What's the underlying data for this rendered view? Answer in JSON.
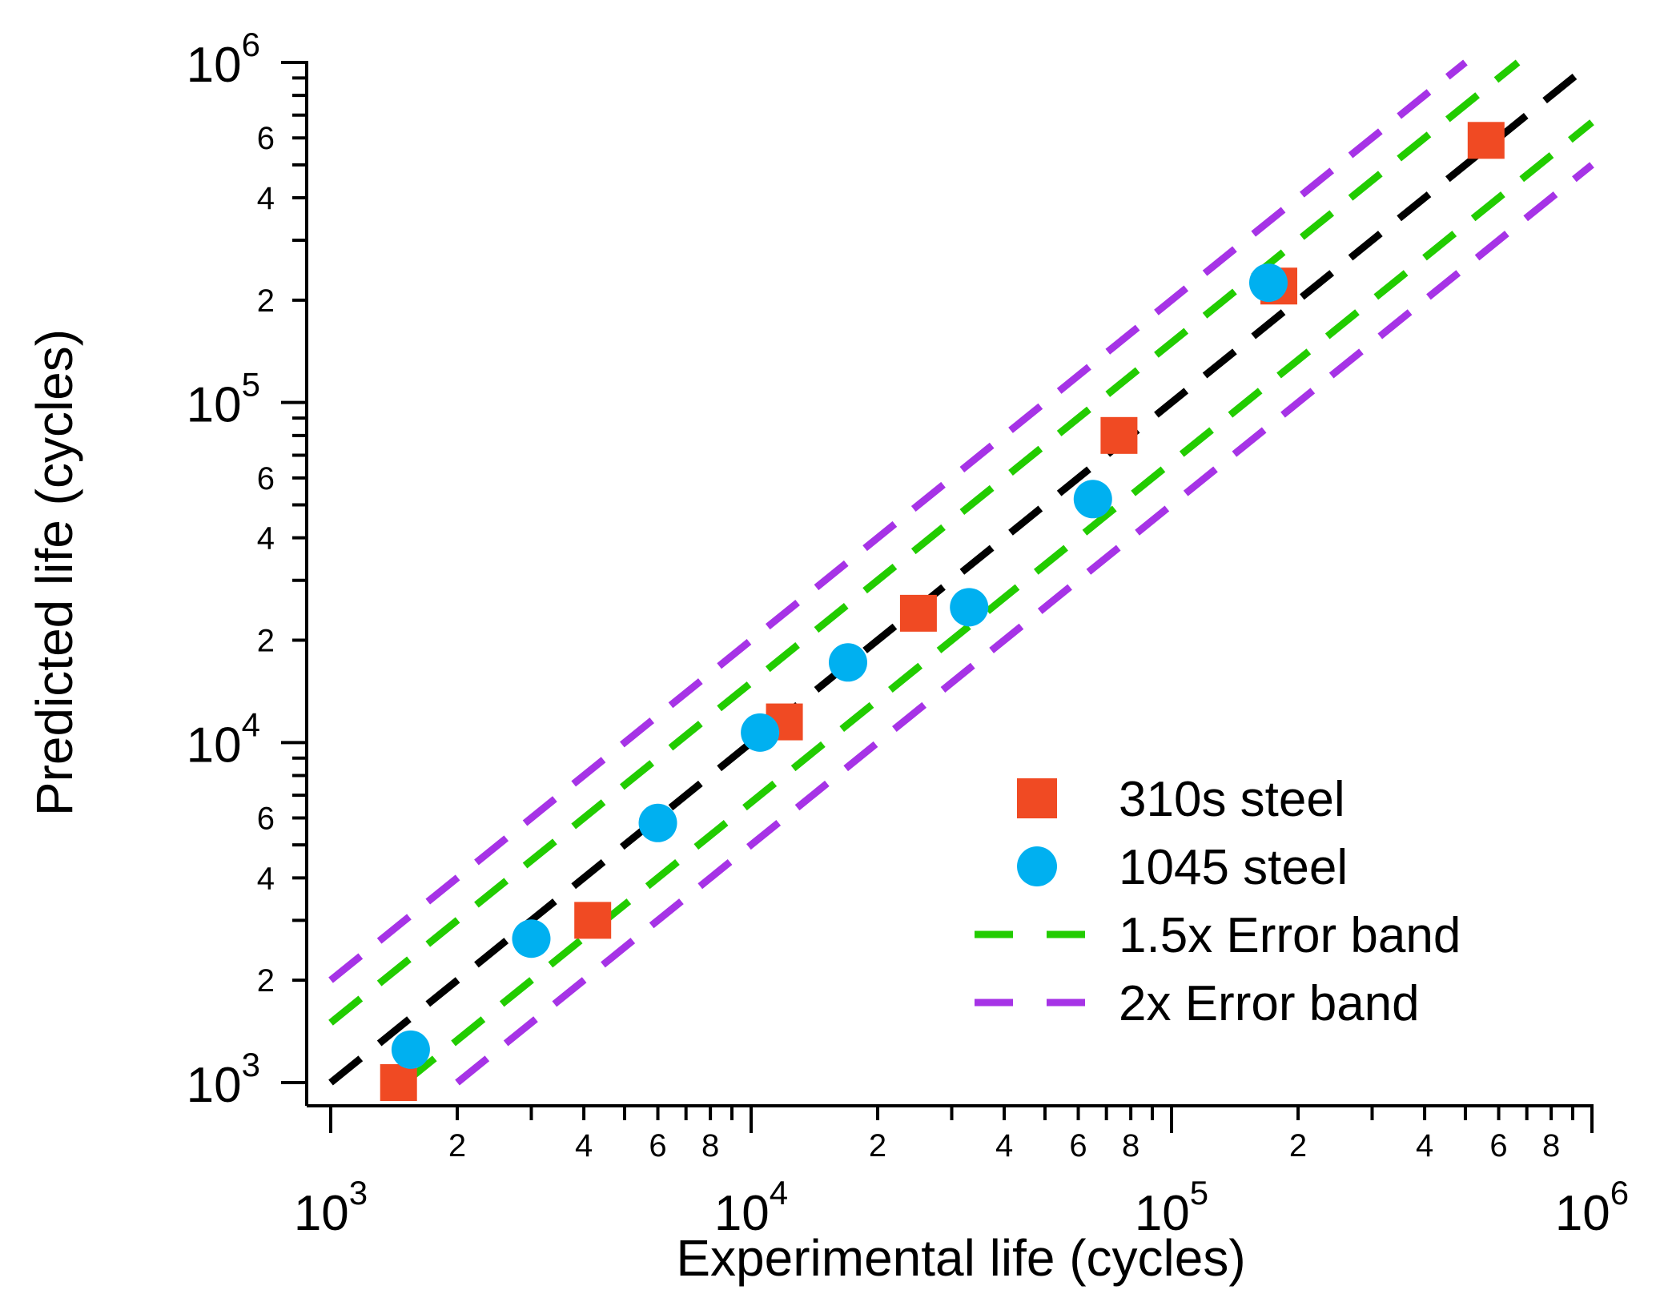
{
  "chart_data": {
    "type": "scatter",
    "xscale": "log",
    "yscale": "log",
    "xlabel": "Experimental life (cycles)",
    "ylabel": "Predicted life (cycles)",
    "xlim": [
      1000,
      1000000
    ],
    "ylim": [
      1000,
      1000000
    ],
    "major_ticks": [
      {
        "base": "10",
        "exp": "3",
        "value": 1000
      },
      {
        "base": "10",
        "exp": "4",
        "value": 10000
      },
      {
        "base": "10",
        "exp": "5",
        "value": 100000
      },
      {
        "base": "10",
        "exp": "6",
        "value": 1000000
      }
    ],
    "minor_tick_labels": [
      "2",
      "4",
      "6",
      "8"
    ],
    "series": [
      {
        "name": "310s steel",
        "marker": "square",
        "color": "#f04a23",
        "points": [
          {
            "x": 1450,
            "y": 1000
          },
          {
            "x": 4200,
            "y": 3000
          },
          {
            "x": 12000,
            "y": 11500
          },
          {
            "x": 25000,
            "y": 24000
          },
          {
            "x": 75000,
            "y": 80000
          },
          {
            "x": 180000,
            "y": 220000
          },
          {
            "x": 560000,
            "y": 590000
          }
        ]
      },
      {
        "name": "1045 steel",
        "marker": "circle",
        "color": "#00b0f0",
        "points": [
          {
            "x": 1550,
            "y": 1250
          },
          {
            "x": 3000,
            "y": 2650
          },
          {
            "x": 6000,
            "y": 5800
          },
          {
            "x": 10500,
            "y": 10700
          },
          {
            "x": 17000,
            "y": 17200
          },
          {
            "x": 33000,
            "y": 25000
          },
          {
            "x": 65000,
            "y": 52000
          },
          {
            "x": 170000,
            "y": 225000
          }
        ]
      }
    ],
    "lines": [
      {
        "name": "",
        "factor": 1,
        "color": "#000000",
        "dash": true
      },
      {
        "name": "1.5x Error band",
        "factor": 1.5,
        "color": "#22cc00",
        "dash": true
      },
      {
        "name": "1.5x Error band",
        "factor": 0.6667,
        "color": "#22cc00",
        "dash": true
      },
      {
        "name": "2x Error band",
        "factor": 2,
        "color": "#a633e6",
        "dash": true
      },
      {
        "name": "2x Error band",
        "factor": 0.5,
        "color": "#a633e6",
        "dash": true
      }
    ],
    "legend": {
      "position": "lower-right",
      "entries": [
        {
          "label": "310s steel",
          "marker": "square",
          "color": "#f04a23"
        },
        {
          "label": "1045 steel",
          "marker": "circle",
          "color": "#00b0f0"
        },
        {
          "label": "1.5x Error band",
          "marker": "dash",
          "color": "#22cc00"
        },
        {
          "label": "2x Error band",
          "marker": "dash",
          "color": "#a633e6"
        }
      ]
    }
  }
}
